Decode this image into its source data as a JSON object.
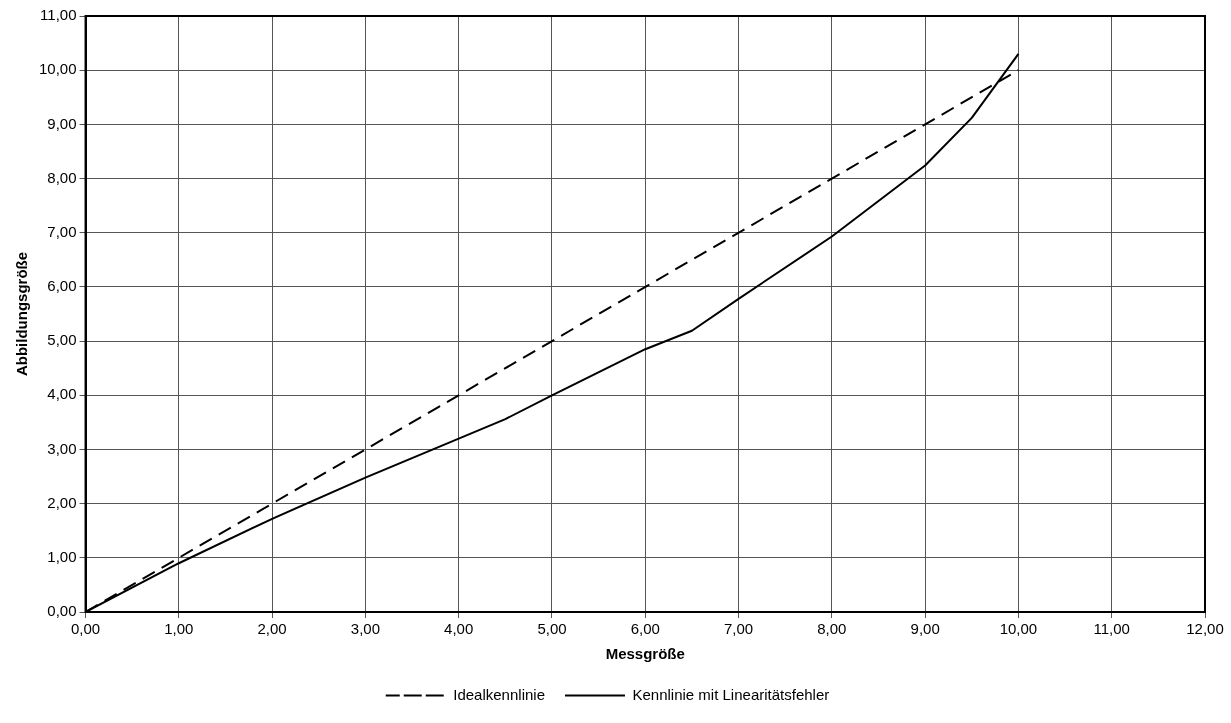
{
  "chart_data": {
    "type": "line",
    "xlabel": "Messgröße",
    "ylabel": "Abbildungsgröße",
    "xlim": [
      0,
      12
    ],
    "ylim": [
      0,
      11
    ],
    "xticks": [
      {
        "value": 0,
        "label": "0,00"
      },
      {
        "value": 1,
        "label": "1,00"
      },
      {
        "value": 2,
        "label": "2,00"
      },
      {
        "value": 3,
        "label": "3,00"
      },
      {
        "value": 4,
        "label": "4,00"
      },
      {
        "value": 5,
        "label": "5,00"
      },
      {
        "value": 6,
        "label": "6,00"
      },
      {
        "value": 7,
        "label": "7,00"
      },
      {
        "value": 8,
        "label": "8,00"
      },
      {
        "value": 9,
        "label": "9,00"
      },
      {
        "value": 10,
        "label": "10,00"
      },
      {
        "value": 11,
        "label": "11,00"
      },
      {
        "value": 12,
        "label": "12,00"
      }
    ],
    "yticks": [
      {
        "value": 0,
        "label": "0,00"
      },
      {
        "value": 1,
        "label": "1,00"
      },
      {
        "value": 2,
        "label": "2,00"
      },
      {
        "value": 3,
        "label": "3,00"
      },
      {
        "value": 4,
        "label": "4,00"
      },
      {
        "value": 5,
        "label": "5,00"
      },
      {
        "value": 6,
        "label": "6,00"
      },
      {
        "value": 7,
        "label": "7,00"
      },
      {
        "value": 8,
        "label": "8,00"
      },
      {
        "value": 9,
        "label": "9,00"
      },
      {
        "value": 10,
        "label": "10,00"
      },
      {
        "value": 11,
        "label": "11,00"
      }
    ],
    "grid": true,
    "legend": "bottom",
    "marker": "none",
    "series": [
      {
        "name": "Idealkennlinie",
        "color": "#000000",
        "line_style": "dashed",
        "x": [
          0,
          10
        ],
        "values": [
          0,
          10
        ]
      },
      {
        "name": "Kennlinie mit Linearitätsfehler",
        "color": "#000000",
        "line_style": "solid",
        "x": [
          0,
          1,
          2,
          3,
          4,
          4.5,
          5,
          6,
          6.5,
          7,
          8,
          9,
          9.5,
          10
        ],
        "values": [
          0,
          0.9,
          1.72,
          2.48,
          3.2,
          3.56,
          4.0,
          4.85,
          5.19,
          5.78,
          6.93,
          8.24,
          9.12,
          10.3
        ]
      }
    ]
  }
}
